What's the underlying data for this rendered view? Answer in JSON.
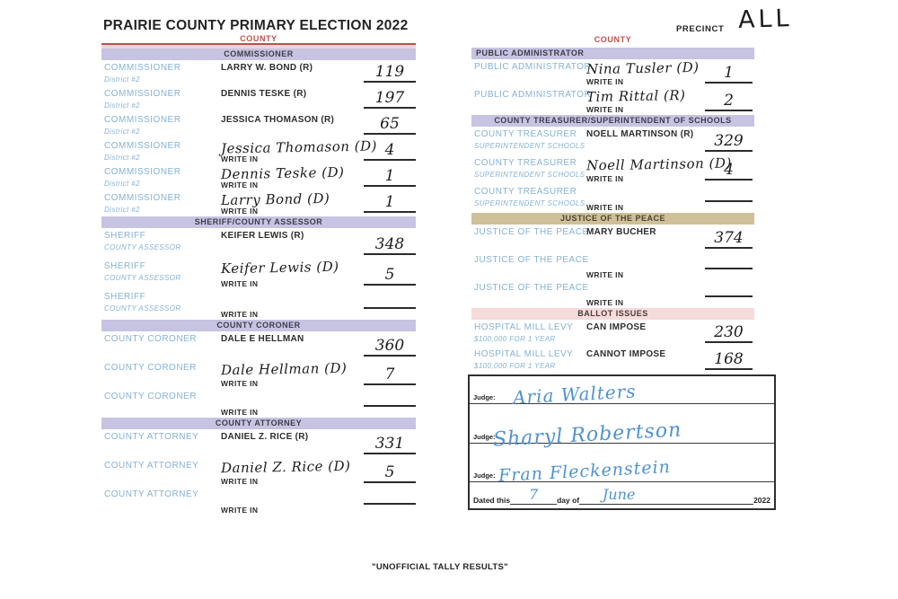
{
  "title": "PRAIRIE COUNTY PRIMARY ELECTION 2022",
  "precinct": {
    "label": "PRECINCT",
    "value": "ALL"
  },
  "footer": "\"UNOFFICIAL TALLY RESULTS\"",
  "write_in_label": "WRITE IN",
  "colors": {
    "bar-lavender": "#c7c3e2",
    "bar-tan": "#cfc099",
    "bar-pink": "#f6dbdb",
    "county-red": "#c0504d",
    "label-blue": "#85b2d6",
    "ink": "#1c1c1c",
    "pen-blue": "#4f92d2",
    "line-dark": "#2b2b2b"
  },
  "left_column": {
    "county_label": "COUNTY",
    "sections": [
      {
        "key": "commissioner",
        "title": "COMMISSIONER",
        "bar": "lavender",
        "rows": [
          {
            "office": "COMMISSIONER",
            "office_sub": "District #2",
            "candidate": "LARRY W. BOND (R)",
            "style": "printed",
            "write_in": false,
            "tally": "119"
          },
          {
            "office": "COMMISSIONER",
            "office_sub": "District #2",
            "candidate": "DENNIS TESKE (R)",
            "style": "printed",
            "write_in": false,
            "tally": "197"
          },
          {
            "office": "COMMISSIONER",
            "office_sub": "District #2",
            "candidate": "JESSICA THOMASON (R)",
            "style": "printed",
            "write_in": false,
            "tally": "65"
          },
          {
            "office": "COMMISSIONER",
            "office_sub": "District #2",
            "candidate": "Jessica Thomason (D)",
            "style": "handwritten",
            "write_in": true,
            "tally": "4"
          },
          {
            "office": "COMMISSIONER",
            "office_sub": "District #2",
            "candidate": "Dennis Teske (D)",
            "style": "handwritten",
            "write_in": true,
            "tally": "1"
          },
          {
            "office": "COMMISSIONER",
            "office_sub": "District #2",
            "candidate": "Larry Bond (D)",
            "style": "handwritten",
            "write_in": true,
            "tally": "1"
          }
        ]
      },
      {
        "key": "sheriff",
        "title": "SHERIFF/COUNTY ASSESSOR",
        "bar": "lavender",
        "rows": [
          {
            "office": "SHERIFF",
            "office_sub": "COUNTY ASSESSOR",
            "candidate": "KEIFER LEWIS (R)",
            "style": "printed",
            "write_in": false,
            "tally": "348"
          },
          {
            "office": "SHERIFF",
            "office_sub": "COUNTY ASSESSOR",
            "candidate": "Keifer Lewis (D)",
            "style": "handwritten",
            "write_in": true,
            "tally": "5"
          },
          {
            "office": "SHERIFF",
            "office_sub": "COUNTY ASSESSOR",
            "candidate": "",
            "style": "none",
            "write_in": true,
            "tally": ""
          }
        ]
      },
      {
        "key": "coroner",
        "title": "COUNTY CORONER",
        "bar": "lavender",
        "rows": [
          {
            "office": "COUNTY CORONER",
            "office_sub": "",
            "candidate": "DALE E HELLMAN",
            "style": "printed",
            "write_in": false,
            "tally": "360"
          },
          {
            "office": "COUNTY CORONER",
            "office_sub": "",
            "candidate": "Dale Hellman (D)",
            "style": "handwritten",
            "write_in": true,
            "tally": "7"
          },
          {
            "office": "COUNTY CORONER",
            "office_sub": "",
            "candidate": "",
            "style": "none",
            "write_in": true,
            "tally": ""
          }
        ]
      },
      {
        "key": "attorney",
        "title": "COUNTY ATTORNEY",
        "bar": "lavender",
        "rows": [
          {
            "office": "COUNTY ATTORNEY",
            "office_sub": "",
            "candidate": "DANIEL Z. RICE (R)",
            "style": "printed",
            "write_in": false,
            "tally": "331"
          },
          {
            "office": "COUNTY ATTORNEY",
            "office_sub": "",
            "candidate": "Daniel Z. Rice (D)",
            "style": "handwritten",
            "write_in": true,
            "tally": "5"
          },
          {
            "office": "COUNTY ATTORNEY",
            "office_sub": "",
            "candidate": "",
            "style": "none",
            "write_in": true,
            "tally": ""
          }
        ]
      }
    ]
  },
  "right_column": {
    "county_label": "COUNTY",
    "sections": [
      {
        "key": "pubadmin",
        "title": "PUBLIC ADMINISTRATOR",
        "bar": "lavender",
        "rows": [
          {
            "office": "PUBLIC ADMINISTRATOR",
            "office_sub": "",
            "candidate": "Nina Tusler (D)",
            "style": "handwritten",
            "write_in": true,
            "tally": "1"
          },
          {
            "office": "PUBLIC ADMINISTRATOR",
            "office_sub": "",
            "candidate": "Tim Rittal (R)",
            "style": "handwritten",
            "write_in": true,
            "tally": "2"
          }
        ]
      },
      {
        "key": "treasurer",
        "title": "COUNTY TREASURER/SUPERINTENDENT OF SCHOOLS",
        "bar": "lavender",
        "rows": [
          {
            "office": "COUNTY TREASURER",
            "office_sub": "SUPERINTENDENT SCHOOLS",
            "candidate": "NOELL MARTINSON (R)",
            "style": "printed",
            "write_in": false,
            "tally": "329"
          },
          {
            "office": "COUNTY TREASURER",
            "office_sub": "SUPERINTENDENT SCHOOLS",
            "candidate": "Noell Martinson (D)",
            "style": "handwritten",
            "write_in": true,
            "tally": "4"
          },
          {
            "office": "COUNTY TREASURER",
            "office_sub": "SUPERINTENDENT SCHOOLS",
            "candidate": "",
            "style": "none",
            "write_in": true,
            "tally": ""
          }
        ]
      },
      {
        "key": "justice",
        "title": "JUSTICE OF THE PEACE",
        "bar": "tan",
        "rows": [
          {
            "office": "JUSTICE OF THE PEACE",
            "office_sub": "",
            "candidate": "MARY BUCHER",
            "style": "printed",
            "write_in": false,
            "tally": "374"
          },
          {
            "office": "JUSTICE OF THE PEACE",
            "office_sub": "",
            "candidate": "",
            "style": "none",
            "write_in": true,
            "tally": ""
          },
          {
            "office": "JUSTICE OF THE PEACE",
            "office_sub": "",
            "candidate": "",
            "style": "none",
            "write_in": true,
            "tally": ""
          }
        ]
      },
      {
        "key": "ballot",
        "title": "BALLOT ISSUES",
        "bar": "pink",
        "rows": [
          {
            "office": "HOSPITAL MILL LEVY",
            "office_sub": "$100,000 FOR 1 YEAR",
            "candidate": "CAN IMPOSE",
            "style": "printed",
            "write_in": false,
            "tally": "230"
          },
          {
            "office": "HOSPITAL MILL LEVY",
            "office_sub": "$100,000 FOR 1 YEAR",
            "candidate": "CANNOT IMPOSE",
            "style": "printed",
            "write_in": false,
            "tally": "168"
          }
        ]
      }
    ]
  },
  "judges_box": {
    "judge_label": "Judge:",
    "signatures": [
      "Aria Walters",
      "Sharyl Robertson",
      "Fran Fleckenstein"
    ],
    "dated": {
      "prefix": "Dated this",
      "day": "7",
      "mid": "day of",
      "month": "June",
      "year": "2022"
    }
  }
}
